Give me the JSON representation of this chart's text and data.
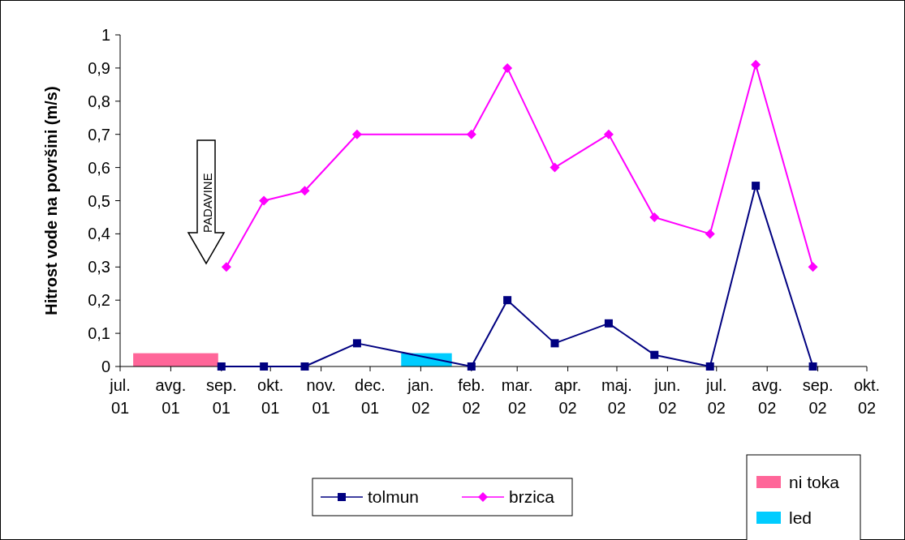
{
  "chart_data": {
    "type": "line",
    "ylabel": "Hitrost vode na površini (m/s)",
    "xlim": [
      "2001-07-01",
      "2002-10-01"
    ],
    "xticks": [
      {
        "value": "2001-07-01",
        "label": "jul. 01"
      },
      {
        "value": "2001-08-01",
        "label": "avg. 01"
      },
      {
        "value": "2001-09-01",
        "label": "sep. 01"
      },
      {
        "value": "2001-10-01",
        "label": "okt. 01"
      },
      {
        "value": "2001-11-01",
        "label": "nov. 01"
      },
      {
        "value": "2001-12-01",
        "label": "dec. 01"
      },
      {
        "value": "2002-01-01",
        "label": "jan. 02"
      },
      {
        "value": "2002-02-01",
        "label": "feb. 02"
      },
      {
        "value": "2002-03-01",
        "label": "mar. 02"
      },
      {
        "value": "2002-04-01",
        "label": "apr. 02"
      },
      {
        "value": "2002-05-01",
        "label": "maj. 02"
      },
      {
        "value": "2002-06-01",
        "label": "jun. 02"
      },
      {
        "value": "2002-07-01",
        "label": "jul. 02"
      },
      {
        "value": "2002-08-01",
        "label": "avg. 02"
      },
      {
        "value": "2002-09-01",
        "label": "sep. 02"
      },
      {
        "value": "2002-10-01",
        "label": "okt. 02"
      }
    ],
    "ylim": [
      0,
      1
    ],
    "yticks": [
      0,
      {
        "value": 0.1,
        "label": "0,1"
      },
      {
        "value": 0.2,
        "label": "0,2"
      },
      {
        "value": 0.3,
        "label": "0,3"
      },
      {
        "value": 0.4,
        "label": "0,4"
      },
      {
        "value": 0.5,
        "label": "0,5"
      },
      {
        "value": 0.6,
        "label": "0,6"
      },
      {
        "value": 0.7,
        "label": "0,7"
      },
      {
        "value": 0.8,
        "label": "0,8"
      },
      {
        "value": 0.9,
        "label": "0,9"
      },
      1
    ],
    "grid": false,
    "legend": "bottom",
    "series": [
      {
        "name": "tolmun",
        "color": "#000080",
        "marker": "square",
        "x": [
          "2001-09-01",
          "2001-09-27",
          "2001-10-22",
          "2001-11-23",
          "2002-02-01",
          "2002-02-23",
          "2002-03-24",
          "2002-04-26",
          "2002-05-24",
          "2002-06-27",
          "2002-07-25",
          "2002-08-29"
        ],
        "values": [
          0,
          0,
          0,
          0.07,
          0,
          0.2,
          0.07,
          0.13,
          0.035,
          0,
          0.545,
          0
        ]
      },
      {
        "name": "brzica",
        "color": "#ff00ff",
        "marker": "diamond",
        "x": [
          "2001-09-04",
          "2001-09-27",
          "2001-10-22",
          "2001-11-23",
          "2002-02-01",
          "2002-02-23",
          "2002-03-24",
          "2002-04-26",
          "2002-05-24",
          "2002-06-27",
          "2002-07-25",
          "2002-08-29"
        ],
        "values": [
          0.3,
          0.5,
          0.53,
          0.7,
          0.7,
          0.9,
          0.6,
          0.7,
          0.45,
          0.4,
          0.91,
          0.3
        ]
      }
    ],
    "bands": [
      {
        "axis": "x",
        "from": "2001-07-09",
        "to": "2001-08-30",
        "label": "ni toka",
        "color": "#ff6699"
      },
      {
        "axis": "x",
        "from": "2001-12-20",
        "to": "2002-01-20",
        "label": "led",
        "color": "#00ccff"
      }
    ],
    "annotations": [
      "PADAVINE"
    ]
  }
}
